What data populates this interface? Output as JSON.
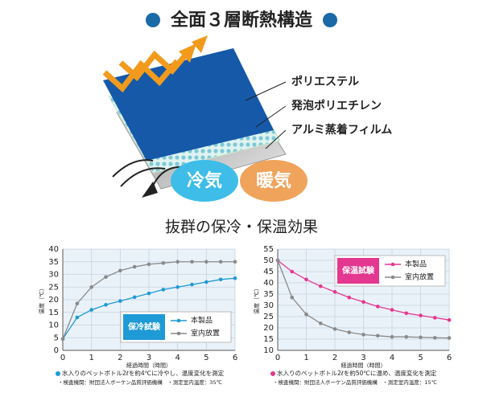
{
  "header": {
    "title": "全面３層断熱構造"
  },
  "diagram": {
    "layers": [
      "ポリエステル",
      "発泡ポリエチレン",
      "アルミ蒸着フィルム"
    ],
    "badges": [
      "冷気",
      "暖気"
    ]
  },
  "subtitle": "抜群の保冷・保温効果",
  "chart_data": [
    {
      "type": "line",
      "legend_title": "保冷試験",
      "legend": "lower right",
      "grid": true,
      "x_label": "経過時間（時間）",
      "y_label": "温度（℃）",
      "x": [
        0,
        0.5,
        1,
        1.5,
        2,
        2.5,
        3,
        3.5,
        4,
        4.5,
        5,
        5.5,
        6
      ],
      "xlim": [
        0,
        6
      ],
      "xticks": [
        0,
        1,
        2,
        3,
        4,
        5,
        6
      ],
      "ylim": [
        0,
        40
      ],
      "yticks": [
        0,
        5,
        10,
        15,
        20,
        25,
        30,
        35,
        40
      ],
      "series": [
        {
          "name": "本製品",
          "color": "#1e9ad6",
          "values": [
            4.5,
            13,
            16,
            18,
            19.5,
            21,
            22.5,
            24,
            25,
            26,
            27,
            28,
            28.5
          ]
        },
        {
          "name": "室内放置",
          "color": "#8a8a8a",
          "values": [
            4.5,
            18.5,
            25,
            29,
            31.5,
            33,
            34,
            34.5,
            35,
            35,
            35,
            35,
            35
          ]
        }
      ],
      "notes": [
        "水入りのペットボトル2ℓを約4℃に冷やし、温度変化を測定",
        "・検査機関：財団法人ボーケン品質評価機構　・測定室内温度：35℃"
      ]
    },
    {
      "type": "line",
      "legend_title": "保温試験",
      "legend": "upper right",
      "grid": true,
      "x_label": "経過時間（時間）",
      "y_label": "温度（℃）",
      "x": [
        0,
        0.5,
        1,
        1.5,
        2,
        2.5,
        3,
        3.5,
        4,
        4.5,
        5,
        5.5,
        6
      ],
      "xlim": [
        0,
        6
      ],
      "xticks": [
        0,
        1,
        2,
        3,
        4,
        5,
        6
      ],
      "ylim": [
        10,
        55
      ],
      "yticks": [
        10,
        15,
        20,
        25,
        30,
        35,
        40,
        45,
        50,
        55
      ],
      "series": [
        {
          "name": "本製品",
          "color": "#e4378f",
          "values": [
            50,
            45,
            41.5,
            38.5,
            36,
            33.5,
            31.5,
            29.5,
            28,
            26.5,
            25.5,
            24.5,
            23.5
          ]
        },
        {
          "name": "室内放置",
          "color": "#8a8a8a",
          "values": [
            50,
            33.5,
            26,
            22,
            19.5,
            18,
            17,
            16.5,
            16,
            16,
            15.8,
            15.6,
            15.5
          ]
        }
      ],
      "notes": [
        "水入りのペットボトル2ℓを約50℃に温め、温度変化を測定",
        "・検査機関：財団法人ボーケン品質評価機構　・測定室内温度：15℃"
      ]
    }
  ]
}
